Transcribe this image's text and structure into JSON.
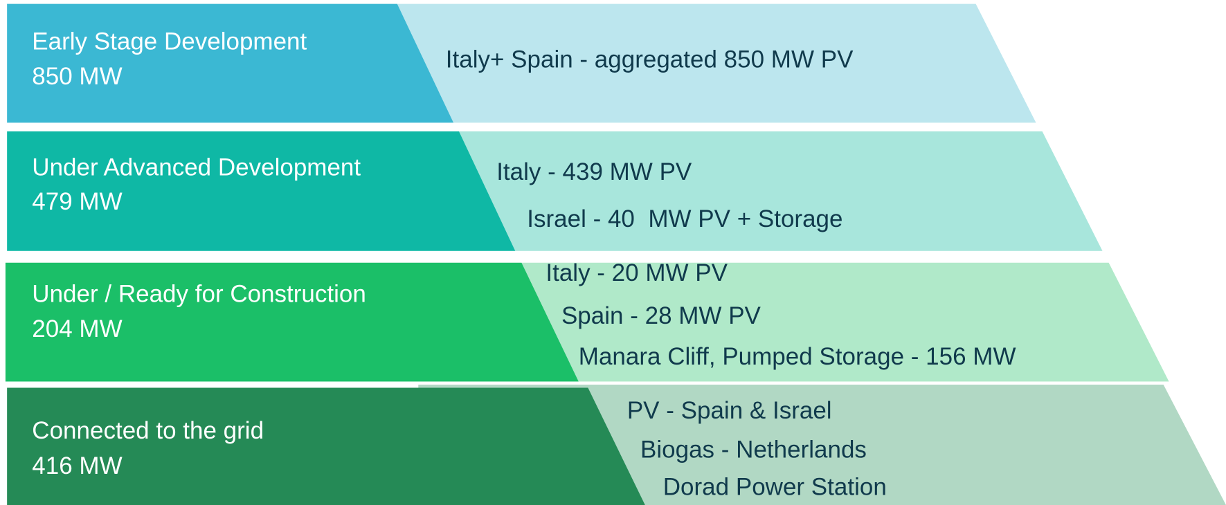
{
  "stages": [
    {
      "title": "Early Stage Development",
      "amount": "850 MW",
      "items": [
        "Italy+ Spain - aggregated 850 MW PV"
      ]
    },
    {
      "title": "Under Advanced Development",
      "amount": "479 MW",
      "items": [
        "Italy - 439 MW PV",
        "Israel - 40  MW PV + Storage"
      ]
    },
    {
      "title": "Under / Ready for Construction",
      "amount": "204 MW",
      "items": [
        "Italy - 20 MW PV",
        "Spain - 28 MW PV",
        "Manara Cliff, Pumped Storage - 156 MW"
      ]
    },
    {
      "title": "Connected to the grid",
      "amount": "416 MW",
      "items": [
        "PV - Spain & Israel",
        "Biogas - Netherlands",
        "Dorad Power Station"
      ]
    }
  ]
}
